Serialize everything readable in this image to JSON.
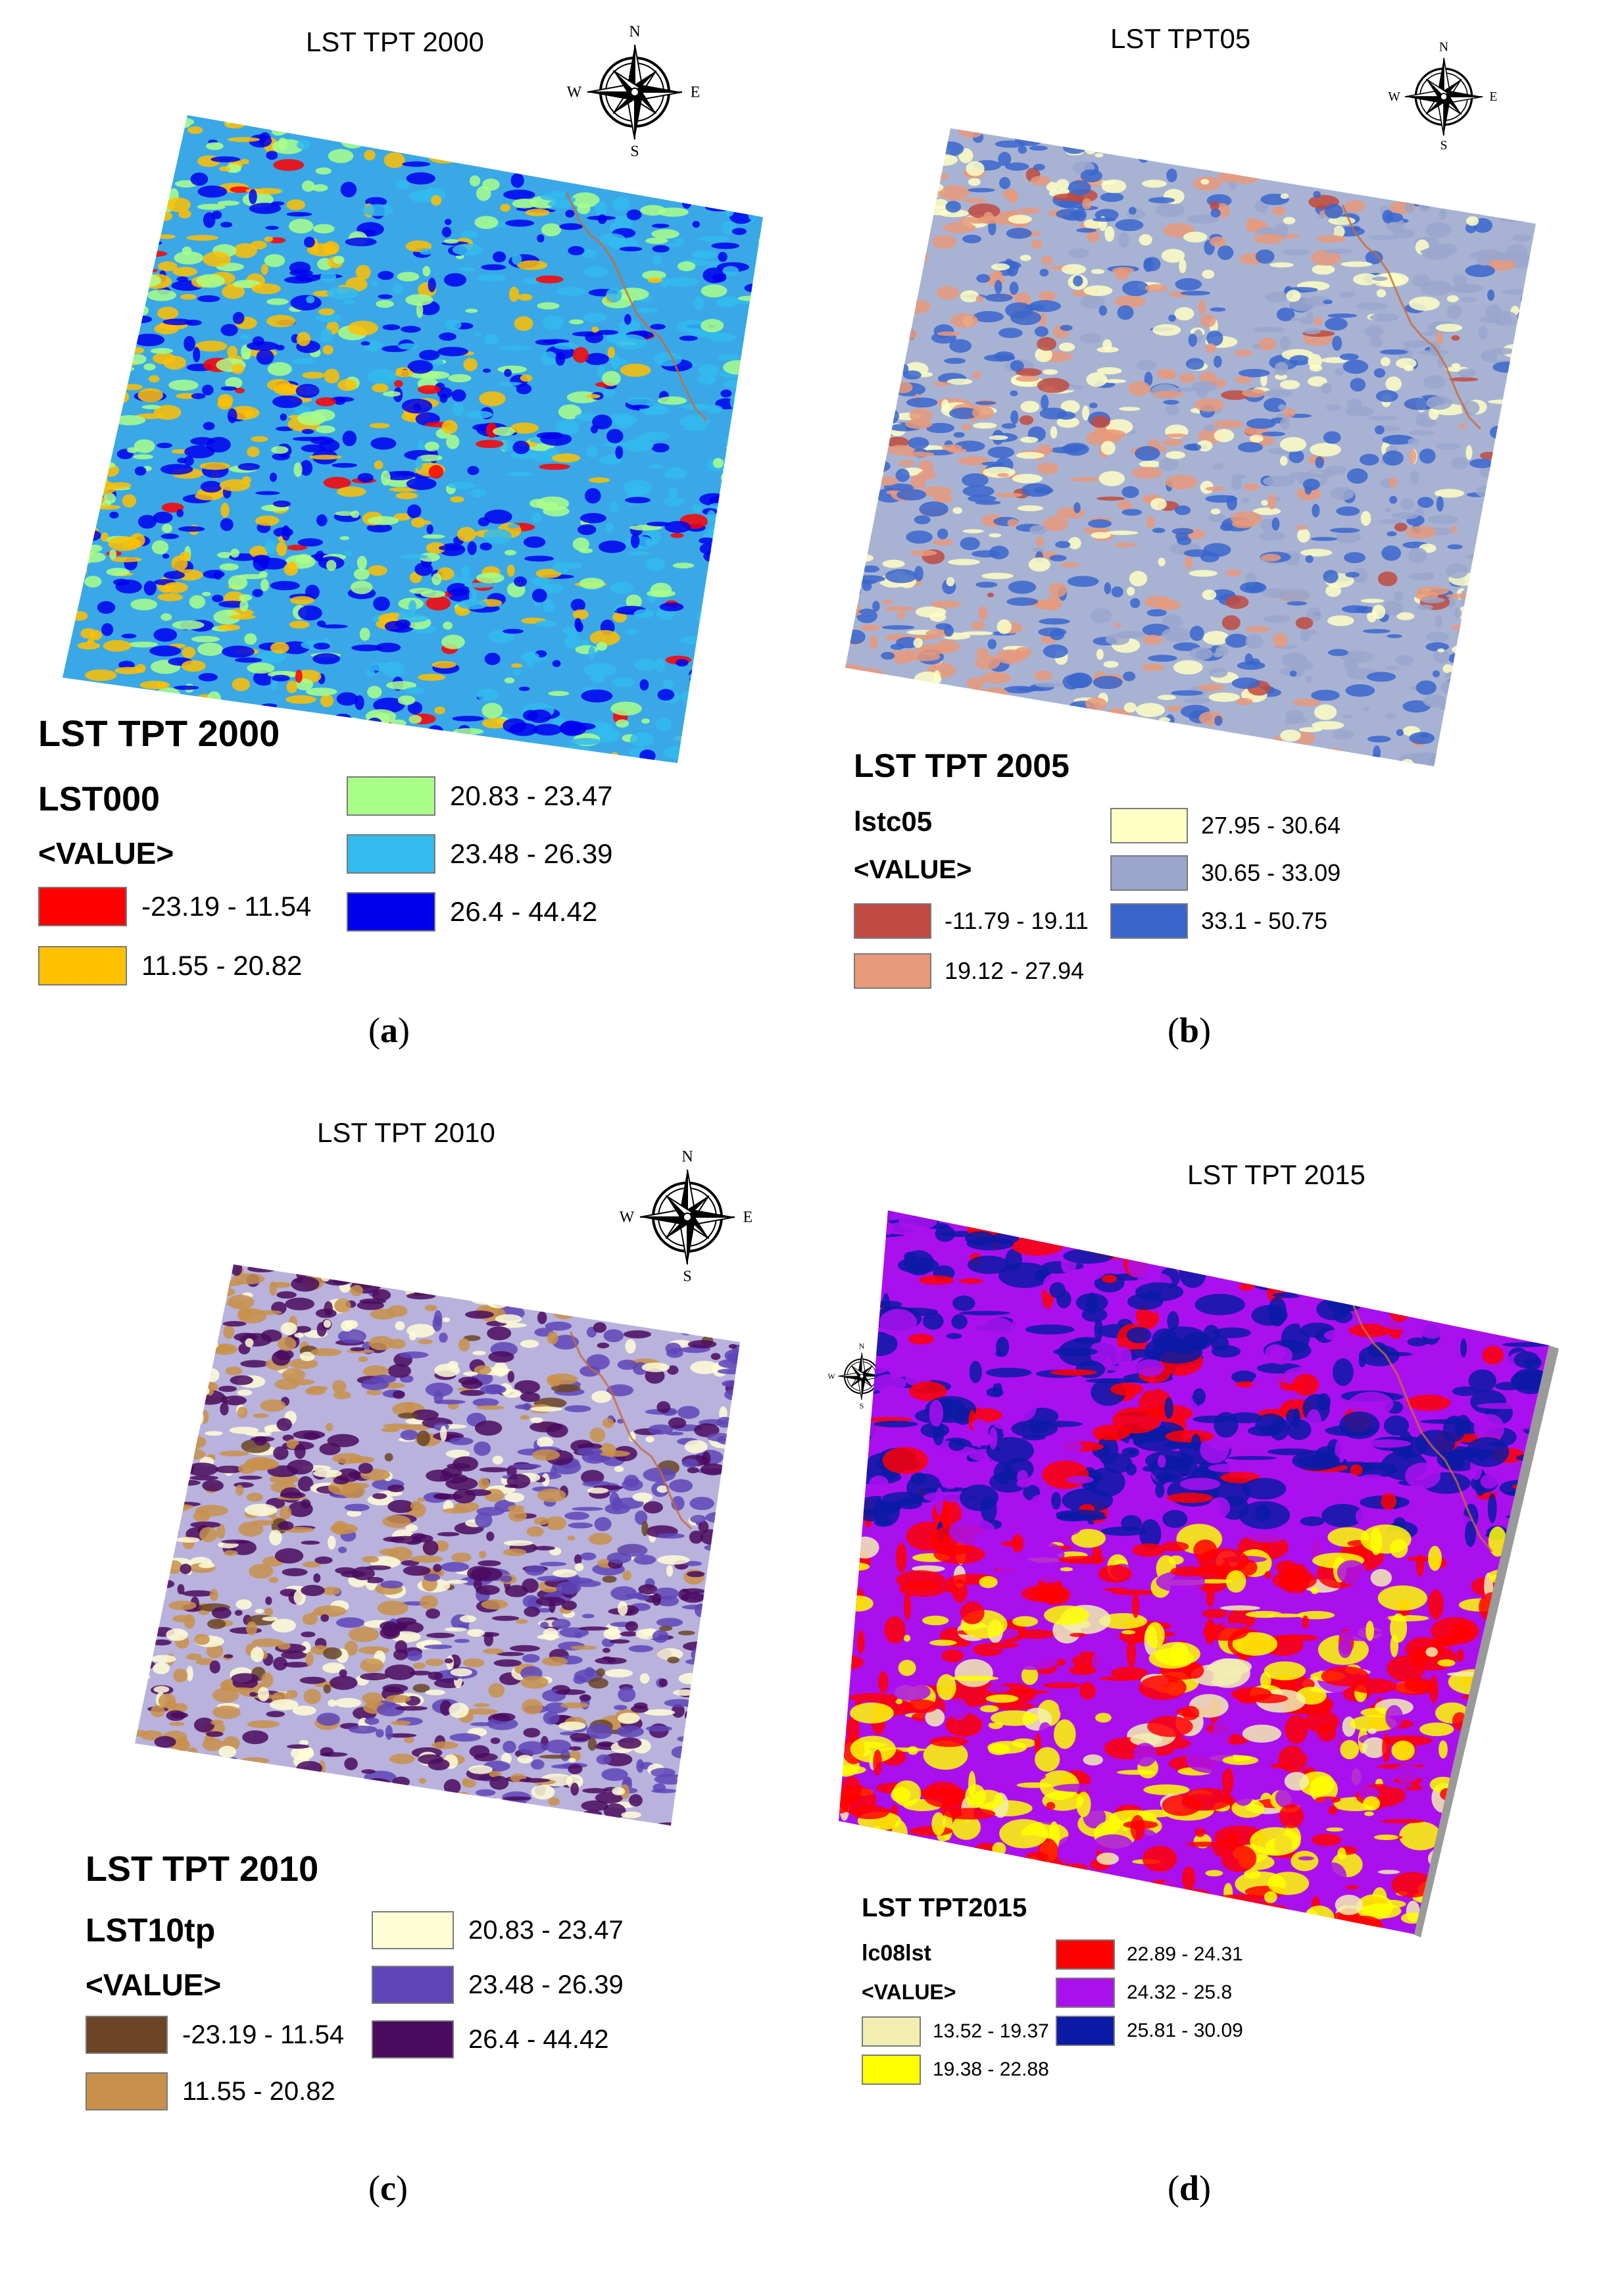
{
  "compass_letters": {
    "n": "N",
    "s": "S",
    "e": "E",
    "w": "W"
  },
  "panels": [
    {
      "map_title": "LST TPT 2000",
      "legend_title": "LST TPT 2000",
      "field": "LST000",
      "value_label": "<VALUE>",
      "sub_label": "a",
      "classes": [
        {
          "range": "-23.19 - 11.54",
          "color": "#ff0000"
        },
        {
          "range": "11.55 - 20.82",
          "color": "#ffc000"
        },
        {
          "range": "20.83 - 23.47",
          "color": "#aaff88"
        },
        {
          "range": "23.48 - 26.39",
          "color": "#33bbee"
        },
        {
          "range": "26.4 - 44.42",
          "color": "#0000ee"
        }
      ]
    },
    {
      "map_title": "LST TPT05",
      "legend_title": "LST TPT 2005",
      "field": "lstc05",
      "value_label": "<VALUE>",
      "sub_label": "b",
      "classes": [
        {
          "range": "-11.79 - 19.11",
          "color": "#c04a40"
        },
        {
          "range": "19.12 - 27.94",
          "color": "#e8997a"
        },
        {
          "range": "27.95 - 30.64",
          "color": "#ffffc4"
        },
        {
          "range": "30.65 - 33.09",
          "color": "#9aa6cc"
        },
        {
          "range": "33.1 - 50.75",
          "color": "#3a66cc"
        }
      ]
    },
    {
      "map_title": "LST TPT 2010",
      "legend_title": "LST TPT 2010",
      "field": "LST10tp",
      "value_label": "<VALUE>",
      "sub_label": "c",
      "classes": [
        {
          "range": "-23.19 - 11.54",
          "color": "#6b4526"
        },
        {
          "range": "11.55 - 20.82",
          "color": "#c8904a"
        },
        {
          "range": "20.83 - 23.47",
          "color": "#fffdd6"
        },
        {
          "range": "23.48 - 26.39",
          "color": "#5e45b8"
        },
        {
          "range": "26.4 - 44.42",
          "color": "#4a0a5e"
        }
      ]
    },
    {
      "map_title": "LST TPT 2015",
      "legend_title": "LST TPT2015",
      "field": "lc08lst",
      "value_label": "<VALUE>",
      "sub_label": "d",
      "classes": [
        {
          "range": "13.52 - 19.37",
          "color": "#f2eeb0"
        },
        {
          "range": "19.38 - 22.88",
          "color": "#ffff00"
        },
        {
          "range": "22.89 - 24.31",
          "color": "#ff0000"
        },
        {
          "range": "24.32 - 25.8",
          "color": "#aa10ee"
        },
        {
          "range": "25.81 - 30.09",
          "color": "#0a1aa6"
        }
      ]
    }
  ]
}
